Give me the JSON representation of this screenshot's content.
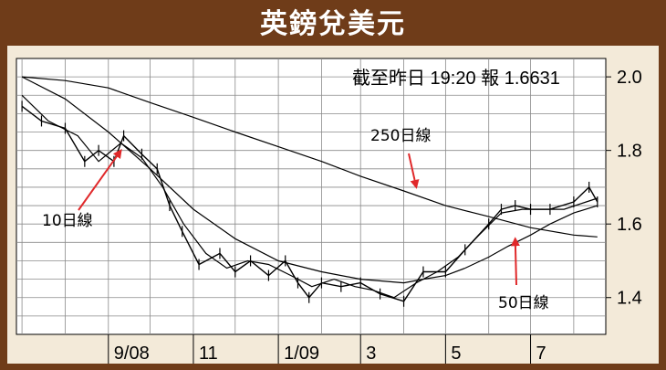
{
  "title": "英鎊兌美元",
  "chart_data": {
    "type": "line",
    "title": "英鎊兌美元",
    "annotation": "截至昨日 19:20 報 1.6631",
    "x_ticks": [
      "9/08",
      "11",
      "1/09",
      "3",
      "5",
      "7"
    ],
    "y_ticks": [
      "2.0",
      "1.8",
      "1.6",
      "1.4"
    ],
    "ylim": [
      1.3,
      2.05
    ],
    "series": [
      {
        "name": "",
        "kind": "daily-hlc",
        "x": [
          "2008-07-01",
          "2008-07-15",
          "2008-08-01",
          "2008-08-15",
          "2008-08-25",
          "2008-09-05",
          "2008-09-12",
          "2008-09-25",
          "2008-10-06",
          "2008-10-15",
          "2008-10-24",
          "2008-11-05",
          "2008-11-20",
          "2008-12-01",
          "2008-12-12",
          "2008-12-25",
          "2009-01-06",
          "2009-01-15",
          "2009-01-23",
          "2009-02-01",
          "2009-02-15",
          "2009-03-01",
          "2009-03-15",
          "2009-04-01",
          "2009-04-15",
          "2009-05-01",
          "2009-05-15",
          "2009-06-01",
          "2009-06-10",
          "2009-06-20",
          "2009-07-01",
          "2009-07-15",
          "2009-08-01",
          "2009-08-12",
          "2009-08-18"
        ],
        "y": [
          1.92,
          1.88,
          1.86,
          1.77,
          1.8,
          1.77,
          1.84,
          1.79,
          1.75,
          1.65,
          1.58,
          1.49,
          1.52,
          1.47,
          1.5,
          1.46,
          1.5,
          1.44,
          1.4,
          1.44,
          1.43,
          1.44,
          1.41,
          1.39,
          1.47,
          1.47,
          1.53,
          1.6,
          1.64,
          1.65,
          1.64,
          1.64,
          1.66,
          1.7,
          1.66
        ]
      },
      {
        "name": "10日線",
        "x": [
          "2008-07-01",
          "2008-07-20",
          "2008-08-10",
          "2008-08-25",
          "2008-09-10",
          "2008-09-25",
          "2008-10-10",
          "2008-10-25",
          "2008-11-10",
          "2008-11-25",
          "2008-12-10",
          "2008-12-25",
          "2009-01-10",
          "2009-01-25",
          "2009-02-10",
          "2009-02-25",
          "2009-03-10",
          "2009-03-25",
          "2009-04-10",
          "2009-04-25",
          "2009-05-10",
          "2009-05-25",
          "2009-06-10",
          "2009-06-25",
          "2009-07-10",
          "2009-07-25",
          "2009-08-10",
          "2009-08-18"
        ],
        "y": [
          1.95,
          1.88,
          1.84,
          1.77,
          1.82,
          1.78,
          1.7,
          1.6,
          1.52,
          1.48,
          1.5,
          1.49,
          1.46,
          1.43,
          1.45,
          1.43,
          1.42,
          1.4,
          1.44,
          1.47,
          1.51,
          1.57,
          1.63,
          1.64,
          1.64,
          1.64,
          1.66,
          1.67
        ]
      },
      {
        "name": "50日線",
        "x": [
          "2008-07-01",
          "2008-08-01",
          "2008-09-01",
          "2008-10-01",
          "2008-11-01",
          "2008-12-01",
          "2009-01-01",
          "2009-02-01",
          "2009-03-01",
          "2009-04-01",
          "2009-04-15",
          "2009-05-01",
          "2009-05-15",
          "2009-06-01",
          "2009-06-15",
          "2009-07-01",
          "2009-07-15",
          "2009-08-01",
          "2009-08-18"
        ],
        "y": [
          2.0,
          1.94,
          1.85,
          1.75,
          1.64,
          1.56,
          1.5,
          1.47,
          1.45,
          1.44,
          1.45,
          1.46,
          1.48,
          1.51,
          1.54,
          1.57,
          1.6,
          1.63,
          1.65
        ]
      },
      {
        "name": "250日線",
        "x": [
          "2008-07-01",
          "2008-08-01",
          "2008-09-01",
          "2008-10-01",
          "2008-11-01",
          "2008-12-01",
          "2009-01-01",
          "2009-02-01",
          "2009-03-01",
          "2009-04-01",
          "2009-05-01",
          "2009-06-01",
          "2009-07-01",
          "2009-08-01",
          "2009-08-18"
        ],
        "y": [
          2.0,
          1.99,
          1.97,
          1.93,
          1.89,
          1.85,
          1.81,
          1.77,
          1.73,
          1.69,
          1.65,
          1.62,
          1.59,
          1.57,
          1.565
        ]
      }
    ],
    "labels": [
      {
        "text": "10日線",
        "target_series": 1,
        "target_x": "2008-09-10",
        "target_y": 1.8
      },
      {
        "text": "250日線",
        "target_series": 3,
        "target_x": "2009-04-10",
        "target_y": 1.7
      },
      {
        "text": "50日線",
        "target_series": 2,
        "target_x": "2009-06-20",
        "target_y": 1.56
      }
    ],
    "colors": {
      "frame": "#6f3c19",
      "background": "#f3ead9",
      "arrow": "#e0282a",
      "line": "#000000"
    },
    "grid": true
  }
}
